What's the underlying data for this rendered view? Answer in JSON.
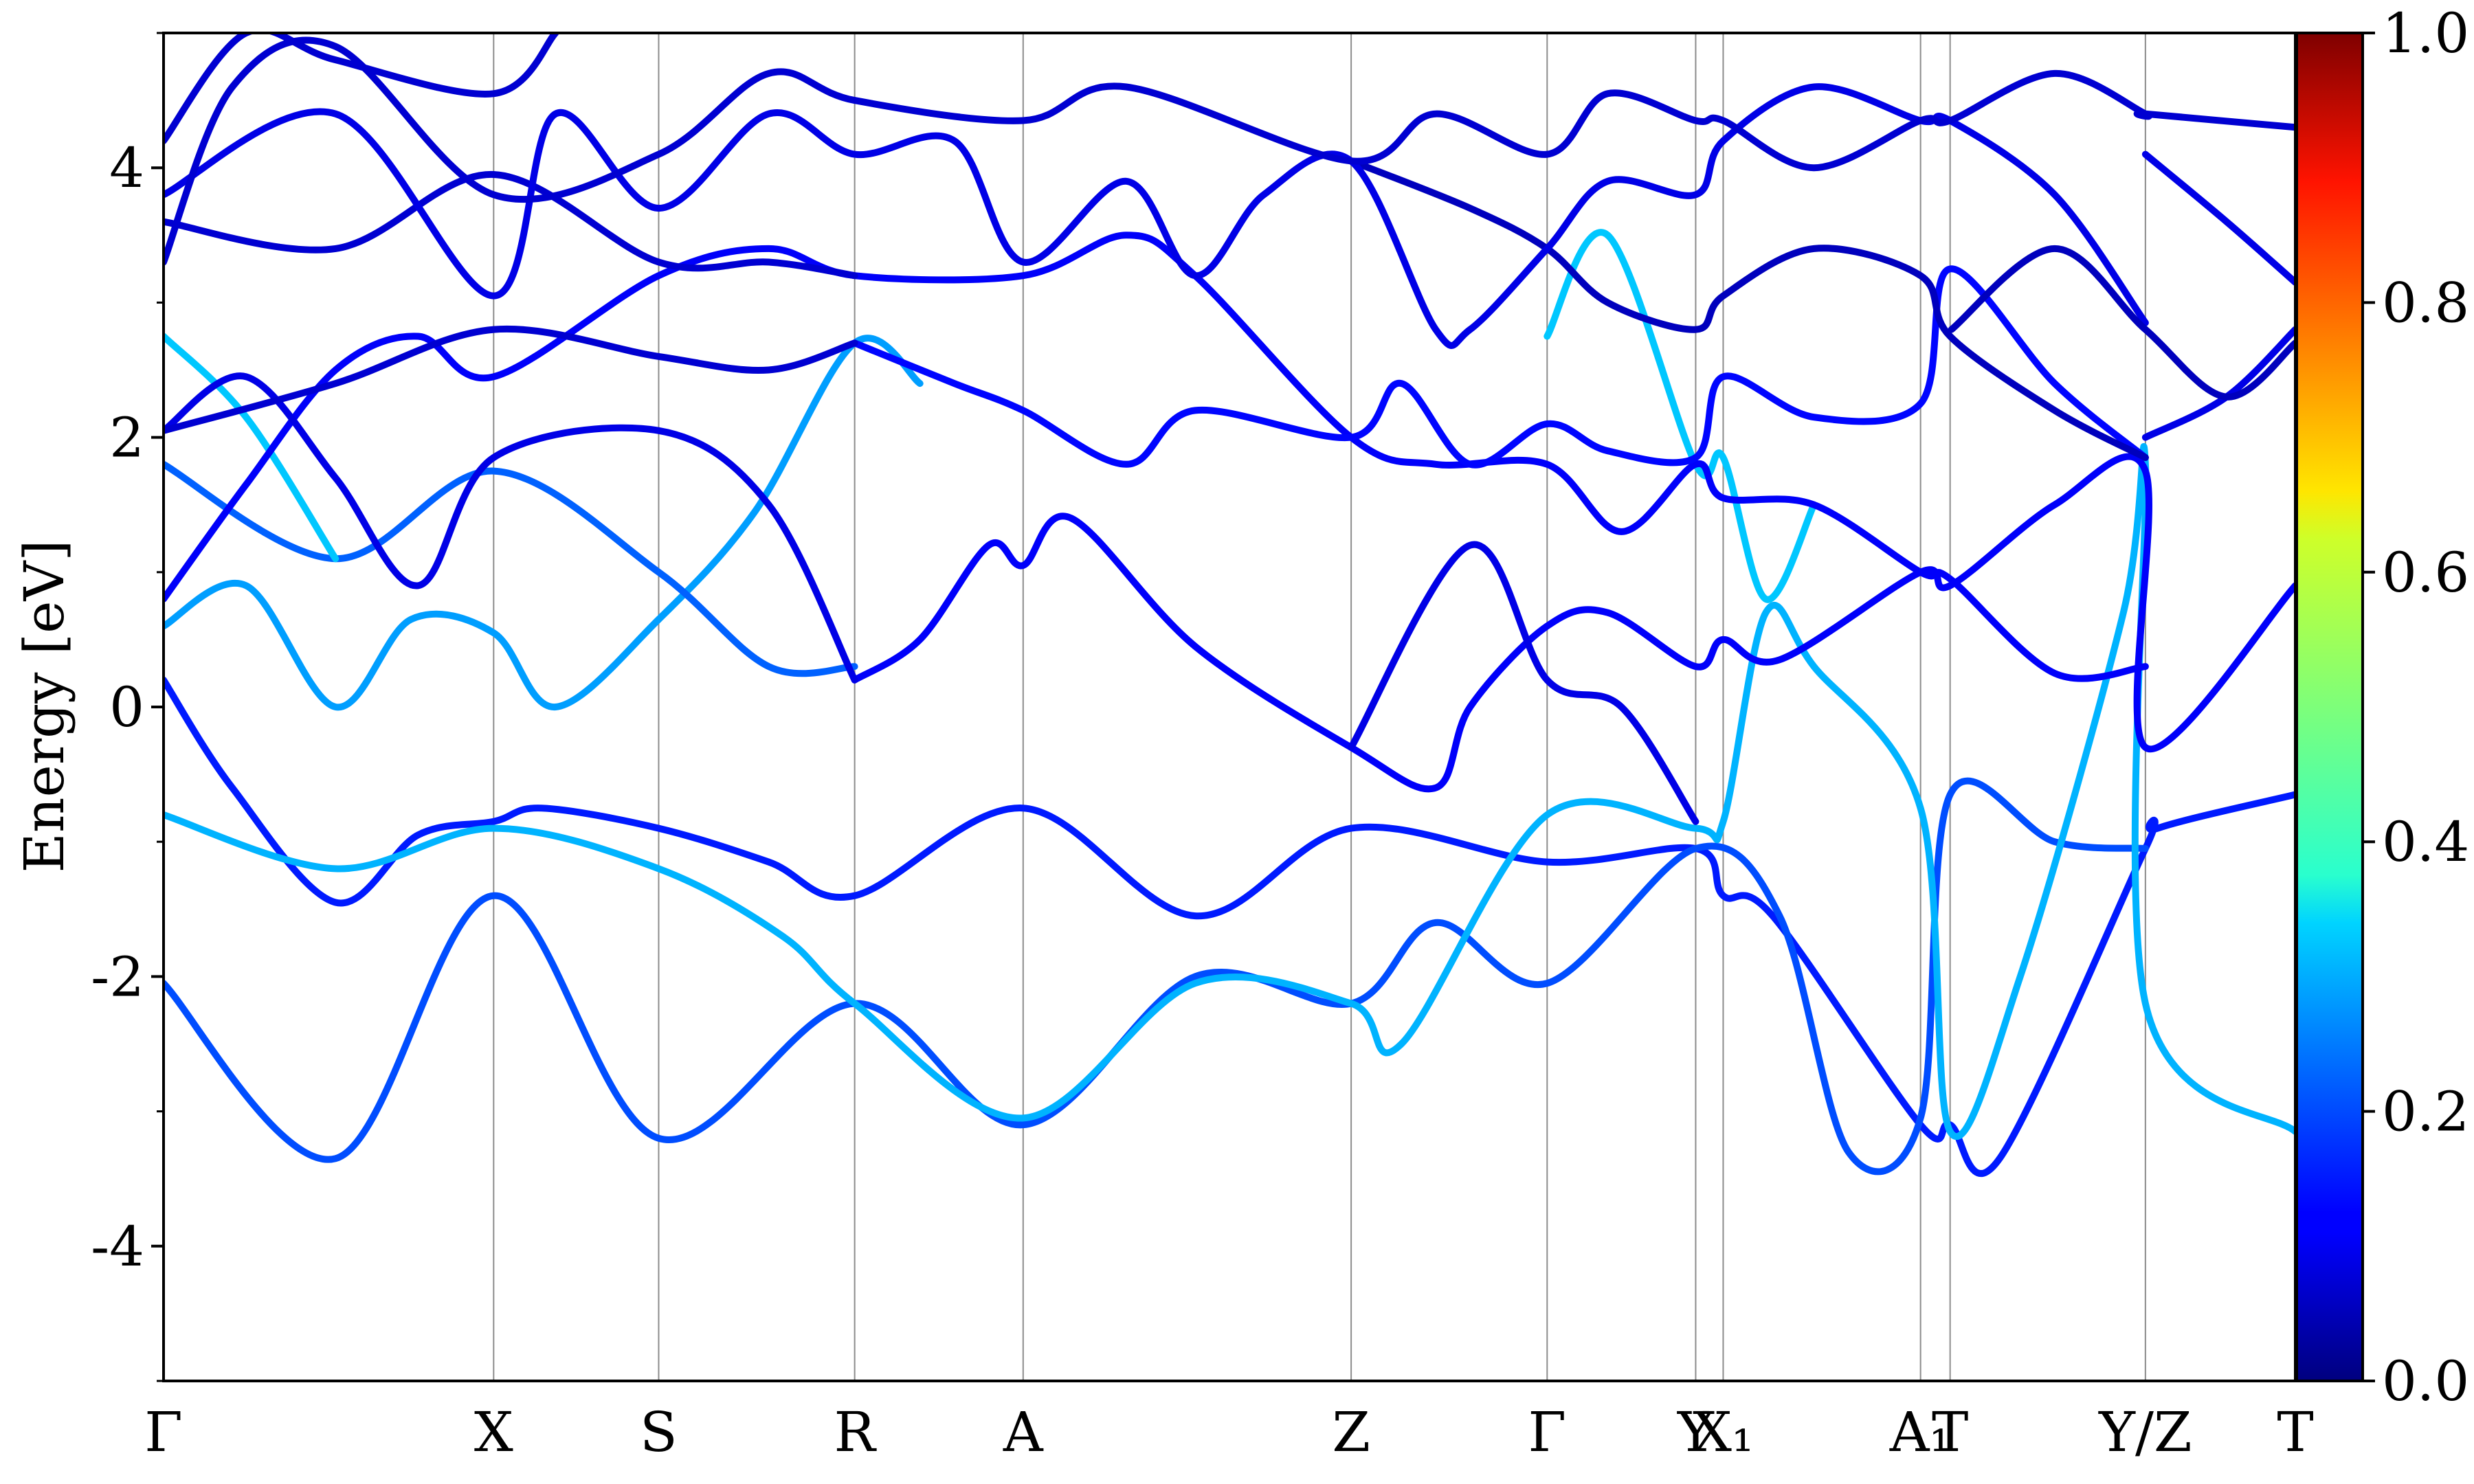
{
  "chart_data": {
    "type": "line",
    "title": "",
    "ylabel": "Energy [eV]",
    "ylim": [
      -5,
      5
    ],
    "yticks": [
      -4,
      -2,
      0,
      2,
      4
    ],
    "ytick_labels": [
      "-4",
      "-2",
      "0",
      "2",
      "4"
    ],
    "xlim": [
      0,
      3.1
    ],
    "kpoints": [
      {
        "label": "Γ",
        "x": 0.0
      },
      {
        "label": "X",
        "x": 0.48
      },
      {
        "label": "S",
        "x": 0.72
      },
      {
        "label": "R",
        "x": 1.005
      },
      {
        "label": "A",
        "x": 1.25
      },
      {
        "label": "Z",
        "x": 1.727
      },
      {
        "label": "Γ",
        "x": 2.012
      },
      {
        "label": "Y",
        "x": 2.228
      },
      {
        "label": "X₁",
        "x": 2.268
      },
      {
        "label": "A₁",
        "x": 2.555
      },
      {
        "label": "T",
        "x": 2.598
      },
      {
        "label": "Y/Z",
        "x": 2.882
      },
      {
        "label": "T",
        "x": 3.1
      }
    ],
    "colorbar": {
      "colormap": "jet",
      "range": [
        0.0,
        1.0
      ],
      "ticks": [
        "0.0",
        "0.2",
        "0.4",
        "0.6",
        "0.8",
        "1.0"
      ]
    },
    "series": [
      {
        "c": 0.15,
        "points": [
          [
            0,
            0.2
          ],
          [
            0.1,
            -0.6
          ],
          [
            0.25,
            -1.45
          ],
          [
            0.37,
            -0.95
          ],
          [
            0.48,
            -0.85
          ],
          [
            0.55,
            -0.75
          ],
          [
            0.72,
            -0.9
          ],
          [
            0.88,
            -1.15
          ],
          [
            1.005,
            -1.4
          ],
          [
            1.25,
            -0.75
          ],
          [
            1.5,
            -1.55
          ],
          [
            1.727,
            -0.9
          ],
          [
            2.012,
            -1.15
          ],
          [
            2.228,
            -1.05
          ],
          [
            2.268,
            -1.4
          ],
          [
            2.34,
            -1.55
          ],
          [
            2.555,
            -3.1
          ],
          [
            2.598,
            -3.1
          ],
          [
            2.67,
            -3.35
          ],
          [
            2.882,
            -1.05
          ],
          [
            2.9,
            -0.9
          ],
          [
            3.1,
            -0.65
          ]
        ]
      },
      {
        "c": 0.2,
        "points": [
          [
            0,
            -2.05
          ],
          [
            0.25,
            -3.35
          ],
          [
            0.48,
            -1.4
          ],
          [
            0.72,
            -3.2
          ],
          [
            1.005,
            -2.2
          ],
          [
            1.25,
            -3.1
          ],
          [
            1.5,
            -2.0
          ],
          [
            1.727,
            -2.2
          ],
          [
            1.85,
            -1.6
          ],
          [
            2.012,
            -2.05
          ],
          [
            2.228,
            -1.05
          ],
          [
            2.35,
            -1.55
          ],
          [
            2.45,
            -3.3
          ],
          [
            2.555,
            -3.05
          ],
          [
            2.598,
            -0.65
          ],
          [
            2.75,
            -1.0
          ],
          [
            2.882,
            -1.05
          ]
        ]
      },
      {
        "c": 0.3,
        "points": [
          [
            0,
            -0.8
          ],
          [
            0.25,
            -1.2
          ],
          [
            0.48,
            -0.9
          ],
          [
            0.72,
            -1.2
          ],
          [
            0.9,
            -1.7
          ],
          [
            1.005,
            -2.2
          ],
          [
            1.25,
            -3.05
          ],
          [
            1.5,
            -2.05
          ],
          [
            1.727,
            -2.2
          ],
          [
            1.8,
            -2.5
          ],
          [
            2.012,
            -0.8
          ],
          [
            2.228,
            -0.9
          ],
          [
            2.268,
            -0.85
          ],
          [
            2.33,
            0.7
          ],
          [
            2.4,
            0.3
          ],
          [
            2.555,
            -0.75
          ],
          [
            2.598,
            -3.15
          ],
          [
            2.7,
            -2.0
          ],
          [
            2.85,
            0.7
          ],
          [
            2.882,
            1.8
          ],
          [
            2.882,
            -2.2
          ],
          [
            3.1,
            -3.15
          ]
        ]
      },
      {
        "c": 0.28,
        "points": [
          [
            0,
            0.6
          ],
          [
            0.12,
            0.9
          ],
          [
            0.25,
            0.0
          ],
          [
            0.36,
            0.65
          ],
          [
            0.48,
            0.55
          ],
          [
            0.57,
            0.0
          ],
          [
            0.72,
            0.65
          ],
          [
            0.86,
            1.45
          ],
          [
            1.005,
            2.7
          ],
          [
            1.1,
            2.4
          ]
        ]
      },
      {
        "c": 0.32,
        "points": [
          [
            2.012,
            2.75
          ],
          [
            2.1,
            3.5
          ],
          [
            2.228,
            1.8
          ],
          [
            2.268,
            1.85
          ],
          [
            2.33,
            0.8
          ],
          [
            2.4,
            1.5
          ]
        ]
      },
      {
        "c": 0.22,
        "points": [
          [
            0,
            1.8
          ],
          [
            0.25,
            1.1
          ],
          [
            0.48,
            1.75
          ],
          [
            0.72,
            1.0
          ],
          [
            0.88,
            0.3
          ],
          [
            1.005,
            0.3
          ]
        ]
      },
      {
        "c": 0.32,
        "points": [
          [
            0,
            2.75
          ],
          [
            0.12,
            2.15
          ],
          [
            0.25,
            1.1
          ]
        ]
      },
      {
        "c": 0.12,
        "points": [
          [
            0,
            0.8
          ],
          [
            0.12,
            1.65
          ],
          [
            0.25,
            2.5
          ],
          [
            0.37,
            2.75
          ],
          [
            0.48,
            2.45
          ],
          [
            0.72,
            3.2
          ],
          [
            0.88,
            3.4
          ],
          [
            1.005,
            3.2
          ],
          [
            1.25,
            3.2
          ],
          [
            1.4,
            3.5
          ],
          [
            1.5,
            3.2
          ],
          [
            1.727,
            2.0
          ],
          [
            1.85,
            1.8
          ],
          [
            2.012,
            1.8
          ],
          [
            2.12,
            1.3
          ],
          [
            2.228,
            1.8
          ],
          [
            2.268,
            1.55
          ],
          [
            2.4,
            1.5
          ],
          [
            2.555,
            1.0
          ],
          [
            2.598,
            0.95
          ],
          [
            2.75,
            0.25
          ],
          [
            2.882,
            0.3
          ]
        ]
      },
      {
        "c": 0.12,
        "points": [
          [
            1.005,
            0.2
          ],
          [
            1.1,
            0.5
          ],
          [
            1.2,
            1.2
          ],
          [
            1.25,
            1.05
          ],
          [
            1.32,
            1.4
          ],
          [
            1.5,
            0.45
          ],
          [
            1.727,
            -0.3
          ],
          [
            1.85,
            -0.6
          ],
          [
            1.9,
            0.0
          ],
          [
            2.012,
            0.6
          ],
          [
            2.1,
            0.7
          ],
          [
            2.228,
            0.3
          ],
          [
            2.268,
            0.5
          ],
          [
            2.35,
            0.35
          ],
          [
            2.555,
            1.0
          ],
          [
            2.598,
            0.9
          ],
          [
            2.75,
            1.5
          ],
          [
            2.882,
            1.75
          ],
          [
            2.882,
            -0.3
          ],
          [
            3.1,
            0.9
          ]
        ]
      },
      {
        "c": 0.1,
        "points": [
          [
            0,
            2.05
          ],
          [
            0.12,
            2.45
          ],
          [
            0.25,
            1.7
          ],
          [
            0.37,
            0.9
          ],
          [
            0.48,
            1.85
          ],
          [
            0.72,
            2.05
          ],
          [
            0.88,
            1.5
          ],
          [
            1.005,
            0.2
          ]
        ]
      },
      {
        "c": 0.1,
        "points": [
          [
            1.727,
            -0.3
          ],
          [
            1.9,
            1.2
          ],
          [
            2.012,
            0.2
          ],
          [
            2.12,
            0.0
          ],
          [
            2.228,
            -0.85
          ]
        ]
      },
      {
        "c": 0.13,
        "points": [
          [
            1.005,
            2.7
          ],
          [
            1.15,
            2.4
          ],
          [
            1.25,
            2.2
          ],
          [
            1.4,
            1.8
          ],
          [
            1.5,
            2.2
          ],
          [
            1.727,
            2.0
          ],
          [
            1.8,
            2.4
          ],
          [
            1.9,
            1.8
          ],
          [
            2.012,
            2.1
          ],
          [
            2.1,
            1.9
          ],
          [
            2.228,
            1.85
          ],
          [
            2.268,
            2.45
          ],
          [
            2.4,
            2.15
          ],
          [
            2.555,
            2.25
          ],
          [
            2.598,
            3.25
          ],
          [
            2.75,
            2.4
          ],
          [
            2.882,
            1.85
          ]
        ]
      },
      {
        "c": 0.08,
        "points": [
          [
            0,
            2.05
          ],
          [
            0.25,
            2.4
          ],
          [
            0.48,
            2.8
          ],
          [
            0.72,
            2.6
          ],
          [
            0.88,
            2.5
          ],
          [
            1.005,
            2.7
          ]
        ]
      },
      {
        "c": 0.08,
        "points": [
          [
            0,
            3.6
          ],
          [
            0.25,
            3.4
          ],
          [
            0.48,
            3.95
          ],
          [
            0.72,
            3.3
          ],
          [
            0.88,
            3.3
          ],
          [
            1.005,
            3.2
          ]
        ]
      },
      {
        "c": 0.06,
        "points": [
          [
            1.727,
            4.05
          ],
          [
            1.9,
            3.7
          ],
          [
            2.012,
            3.4
          ],
          [
            2.1,
            3.0
          ],
          [
            2.228,
            2.8
          ],
          [
            2.268,
            3.05
          ],
          [
            2.4,
            3.4
          ],
          [
            2.555,
            3.2
          ],
          [
            2.598,
            2.75
          ],
          [
            2.75,
            2.2
          ],
          [
            2.882,
            1.85
          ]
        ]
      },
      {
        "c": 0.1,
        "points": [
          [
            0,
            3.8
          ],
          [
            0.25,
            4.4
          ],
          [
            0.48,
            3.05
          ],
          [
            0.57,
            4.4
          ],
          [
            0.72,
            3.7
          ],
          [
            0.88,
            4.4
          ],
          [
            1.005,
            4.1
          ],
          [
            1.15,
            4.2
          ],
          [
            1.25,
            3.3
          ],
          [
            1.4,
            3.9
          ],
          [
            1.5,
            3.2
          ],
          [
            1.6,
            3.8
          ],
          [
            1.727,
            4.05
          ],
          [
            1.85,
            2.8
          ],
          [
            1.9,
            2.8
          ],
          [
            2.012,
            3.4
          ],
          [
            2.1,
            3.9
          ],
          [
            2.228,
            3.8
          ],
          [
            2.268,
            4.2
          ],
          [
            2.4,
            4.6
          ],
          [
            2.555,
            4.35
          ],
          [
            2.598,
            4.35
          ],
          [
            2.75,
            3.8
          ],
          [
            2.882,
            2.85
          ]
        ]
      },
      {
        "c": 0.08,
        "points": [
          [
            0,
            4.2
          ],
          [
            0.12,
            5.0
          ],
          [
            0.25,
            4.8
          ],
          [
            0.48,
            4.55
          ],
          [
            0.57,
            5.0
          ]
        ]
      },
      {
        "c": 0.08,
        "points": [
          [
            0,
            3.3
          ],
          [
            0.1,
            4.6
          ],
          [
            0.25,
            4.9
          ],
          [
            0.48,
            3.8
          ],
          [
            0.72,
            4.1
          ],
          [
            0.88,
            4.7
          ],
          [
            1.005,
            4.5
          ],
          [
            1.25,
            4.35
          ],
          [
            1.4,
            4.6
          ],
          [
            1.727,
            4.05
          ],
          [
            1.85,
            4.4
          ],
          [
            2.012,
            4.1
          ],
          [
            2.1,
            4.55
          ],
          [
            2.228,
            4.35
          ],
          [
            2.268,
            4.35
          ],
          [
            2.4,
            4.0
          ],
          [
            2.555,
            4.35
          ],
          [
            2.598,
            4.35
          ],
          [
            2.75,
            4.7
          ],
          [
            2.882,
            4.4
          ],
          [
            2.882,
            4.4
          ],
          [
            3.1,
            4.3
          ]
        ]
      },
      {
        "c": 0.1,
        "points": [
          [
            2.882,
            2.0
          ],
          [
            3.0,
            2.3
          ],
          [
            3.1,
            2.8
          ]
        ]
      },
      {
        "c": 0.1,
        "points": [
          [
            2.882,
            4.1
          ],
          [
            3.0,
            3.6
          ],
          [
            3.1,
            3.15
          ]
        ]
      },
      {
        "c": 0.06,
        "points": [
          [
            2.6,
            2.8
          ],
          [
            2.75,
            3.4
          ],
          [
            2.882,
            2.8
          ],
          [
            3.0,
            2.3
          ],
          [
            3.1,
            2.7
          ]
        ]
      }
    ]
  }
}
